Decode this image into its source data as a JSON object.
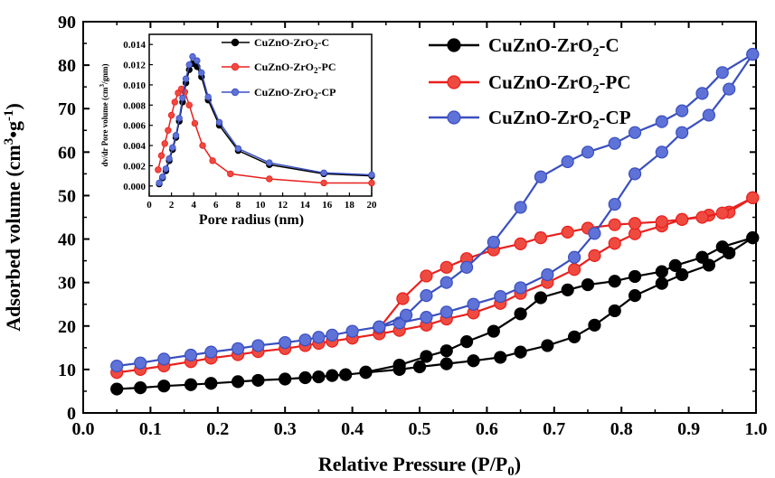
{
  "chart_data": [
    {
      "type": "line",
      "xlabel": "Relative Pressure (P/P",
      "xlabel_sub": "0",
      "xlabel_end": ")",
      "ylabel": "Adsorbed volume (cm",
      "ylabel_sup": "3",
      "ylabel_mid": "•g",
      "ylabel_sup2": "-1",
      "ylabel_end": ")",
      "xlim": [
        0.0,
        1.0
      ],
      "ylim": [
        0,
        90
      ],
      "xticks": [
        "0.0",
        "0.1",
        "0.2",
        "0.3",
        "0.4",
        "0.5",
        "0.6",
        "0.7",
        "0.8",
        "0.9",
        "1.0"
      ],
      "yticks": [
        "0",
        "10",
        "20",
        "30",
        "40",
        "50",
        "60",
        "70",
        "80",
        "90"
      ],
      "grid": false,
      "legend_position": "top-right",
      "series": [
        {
          "name_parts": [
            "CuZnO-ZrO",
            "2",
            "-C"
          ],
          "color": "#000000",
          "marker_fill": "#000000",
          "adsorption": [
            [
              0.05,
              5.5
            ],
            [
              0.085,
              5.8
            ],
            [
              0.12,
              6.2
            ],
            [
              0.16,
              6.5
            ],
            [
              0.19,
              6.8
            ],
            [
              0.23,
              7.2
            ],
            [
              0.26,
              7.5
            ],
            [
              0.3,
              7.8
            ],
            [
              0.33,
              8.1
            ],
            [
              0.35,
              8.3
            ],
            [
              0.37,
              8.6
            ],
            [
              0.39,
              8.8
            ],
            [
              0.42,
              9.3
            ],
            [
              0.47,
              10.0
            ],
            [
              0.5,
              10.6
            ],
            [
              0.54,
              11.3
            ],
            [
              0.58,
              12.0
            ],
            [
              0.62,
              12.8
            ],
            [
              0.65,
              14.0
            ],
            [
              0.69,
              15.5
            ],
            [
              0.73,
              17.5
            ],
            [
              0.76,
              20.2
            ],
            [
              0.79,
              23.5
            ],
            [
              0.82,
              27.0
            ],
            [
              0.86,
              29.8
            ],
            [
              0.89,
              31.8
            ],
            [
              0.93,
              34.0
            ],
            [
              0.96,
              36.8
            ],
            [
              0.995,
              40.3
            ]
          ],
          "desorption": [
            [
              0.995,
              40.3
            ],
            [
              0.95,
              38.2
            ],
            [
              0.92,
              35.8
            ],
            [
              0.88,
              33.9
            ],
            [
              0.86,
              32.5
            ],
            [
              0.82,
              31.4
            ],
            [
              0.79,
              30.3
            ],
            [
              0.75,
              29.5
            ],
            [
              0.72,
              28.3
            ],
            [
              0.68,
              26.5
            ],
            [
              0.65,
              22.8
            ],
            [
              0.61,
              18.8
            ],
            [
              0.57,
              16.4
            ],
            [
              0.54,
              14.3
            ],
            [
              0.51,
              13.0
            ],
            [
              0.47,
              11.0
            ],
            [
              0.42,
              9.4
            ]
          ]
        },
        {
          "name_parts": [
            "CuZnO-ZrO",
            "2",
            "-PC"
          ],
          "color": "#e8201e",
          "marker_fill": "#ef4a3f",
          "adsorption": [
            [
              0.05,
              9.3
            ],
            [
              0.085,
              10.0
            ],
            [
              0.12,
              10.8
            ],
            [
              0.16,
              11.8
            ],
            [
              0.19,
              12.6
            ],
            [
              0.23,
              13.4
            ],
            [
              0.26,
              14.1
            ],
            [
              0.3,
              14.8
            ],
            [
              0.33,
              15.5
            ],
            [
              0.35,
              16.0
            ],
            [
              0.37,
              16.5
            ],
            [
              0.4,
              17.2
            ],
            [
              0.44,
              18.2
            ],
            [
              0.47,
              19.0
            ],
            [
              0.51,
              20.2
            ],
            [
              0.54,
              21.6
            ],
            [
              0.58,
              23.0
            ],
            [
              0.62,
              25.2
            ],
            [
              0.65,
              27.5
            ],
            [
              0.69,
              30.0
            ],
            [
              0.73,
              33.0
            ],
            [
              0.76,
              36.2
            ],
            [
              0.79,
              39.0
            ],
            [
              0.82,
              41.2
            ],
            [
              0.86,
              43.0
            ],
            [
              0.89,
              44.5
            ],
            [
              0.93,
              45.5
            ],
            [
              0.96,
              46.2
            ],
            [
              0.995,
              49.5
            ]
          ],
          "desorption": [
            [
              0.995,
              49.5
            ],
            [
              0.95,
              46.0
            ],
            [
              0.92,
              45.0
            ],
            [
              0.89,
              44.5
            ],
            [
              0.86,
              44.0
            ],
            [
              0.82,
              43.6
            ],
            [
              0.79,
              43.3
            ],
            [
              0.75,
              42.5
            ],
            [
              0.72,
              41.6
            ],
            [
              0.68,
              40.3
            ],
            [
              0.65,
              38.9
            ],
            [
              0.61,
              37.5
            ],
            [
              0.57,
              35.5
            ],
            [
              0.54,
              33.5
            ],
            [
              0.51,
              31.5
            ],
            [
              0.475,
              26.3
            ],
            [
              0.44,
              19.5
            ]
          ]
        },
        {
          "name_parts": [
            "CuZnO-ZrO",
            "2",
            "-CP"
          ],
          "color": "#3a4fbf",
          "marker_fill": "#5e72d8",
          "adsorption": [
            [
              0.05,
              10.8
            ],
            [
              0.085,
              11.5
            ],
            [
              0.12,
              12.4
            ],
            [
              0.16,
              13.3
            ],
            [
              0.19,
              14.0
            ],
            [
              0.23,
              14.8
            ],
            [
              0.26,
              15.5
            ],
            [
              0.3,
              16.2
            ],
            [
              0.33,
              16.8
            ],
            [
              0.35,
              17.4
            ],
            [
              0.37,
              17.9
            ],
            [
              0.4,
              18.8
            ],
            [
              0.44,
              19.8
            ],
            [
              0.47,
              20.7
            ],
            [
              0.51,
              22.0
            ],
            [
              0.54,
              23.2
            ],
            [
              0.58,
              25.0
            ],
            [
              0.62,
              26.8
            ],
            [
              0.65,
              28.8
            ],
            [
              0.69,
              31.8
            ],
            [
              0.73,
              35.8
            ],
            [
              0.76,
              41.3
            ],
            [
              0.79,
              48.0
            ],
            [
              0.82,
              55.0
            ],
            [
              0.86,
              60.0
            ],
            [
              0.89,
              64.5
            ],
            [
              0.93,
              68.5
            ],
            [
              0.96,
              74.5
            ],
            [
              0.995,
              82.5
            ]
          ],
          "desorption": [
            [
              0.995,
              82.5
            ],
            [
              0.95,
              78.3
            ],
            [
              0.92,
              73.5
            ],
            [
              0.89,
              69.5
            ],
            [
              0.86,
              67.0
            ],
            [
              0.82,
              64.5
            ],
            [
              0.79,
              62.0
            ],
            [
              0.75,
              60.0
            ],
            [
              0.72,
              57.8
            ],
            [
              0.68,
              54.3
            ],
            [
              0.65,
              47.3
            ],
            [
              0.61,
              39.3
            ],
            [
              0.57,
              33.5
            ],
            [
              0.54,
              30.0
            ],
            [
              0.51,
              27.0
            ],
            [
              0.48,
              22.5
            ],
            [
              0.44,
              19.8
            ]
          ]
        }
      ]
    },
    {
      "type": "line",
      "inset": true,
      "xlabel": "Pore radius (nm)",
      "ylabel": "dv/dr Pore volume (cm",
      "ylabel_sup": "3",
      "ylabel_end": "/gnm)",
      "xlim": [
        0,
        20
      ],
      "ylim": [
        -0.001,
        0.015
      ],
      "xticks": [
        "0",
        "2",
        "4",
        "6",
        "8",
        "10",
        "12",
        "14",
        "16",
        "18",
        "20"
      ],
      "yticks": [
        "0.000",
        "0.002",
        "0.004",
        "0.006",
        "0.008",
        "0.010",
        "0.012",
        "0.014"
      ],
      "legend_position": "top-right",
      "series": [
        {
          "name_parts": [
            "CuZnO-ZrO",
            "2",
            "-C"
          ],
          "color": "#000000",
          "marker_fill": "#000000",
          "points": [
            [
              0.9,
              0.0002
            ],
            [
              1.2,
              0.0008
            ],
            [
              1.5,
              0.0015
            ],
            [
              1.8,
              0.0025
            ],
            [
              2.1,
              0.0036
            ],
            [
              2.4,
              0.0048
            ],
            [
              2.7,
              0.0064
            ],
            [
              3.0,
              0.0083
            ],
            [
              3.3,
              0.0102
            ],
            [
              3.6,
              0.0115
            ],
            [
              3.9,
              0.0121
            ],
            [
              4.3,
              0.0118
            ],
            [
              4.7,
              0.0108
            ],
            [
              5.3,
              0.0085
            ],
            [
              6.3,
              0.006
            ],
            [
              8.0,
              0.0035
            ],
            [
              10.8,
              0.0021
            ],
            [
              15.7,
              0.0012
            ],
            [
              20,
              0.001
            ]
          ]
        },
        {
          "name_parts": [
            "CuZnO-ZrO",
            "2",
            "-PC"
          ],
          "color": "#e8201e",
          "marker_fill": "#ef4a3f",
          "points": [
            [
              0.8,
              0.0016
            ],
            [
              1.1,
              0.003
            ],
            [
              1.4,
              0.0042
            ],
            [
              1.7,
              0.0055
            ],
            [
              2.0,
              0.007
            ],
            [
              2.3,
              0.0083
            ],
            [
              2.6,
              0.0092
            ],
            [
              2.9,
              0.0096
            ],
            [
              3.2,
              0.0093
            ],
            [
              3.6,
              0.008
            ],
            [
              4.1,
              0.0062
            ],
            [
              4.8,
              0.004
            ],
            [
              5.7,
              0.0025
            ],
            [
              7.3,
              0.0012
            ],
            [
              10.8,
              0.0007
            ],
            [
              15.7,
              0.0003
            ],
            [
              20,
              0.0003
            ]
          ]
        },
        {
          "name_parts": [
            "CuZnO-ZrO",
            "2",
            "-CP"
          ],
          "color": "#3a4fbf",
          "marker_fill": "#5e72d8",
          "points": [
            [
              0.9,
              0.0003
            ],
            [
              1.2,
              0.0009
            ],
            [
              1.5,
              0.0017
            ],
            [
              1.8,
              0.0027
            ],
            [
              2.1,
              0.0038
            ],
            [
              2.4,
              0.005
            ],
            [
              2.7,
              0.0067
            ],
            [
              3.0,
              0.0087
            ],
            [
              3.3,
              0.0106
            ],
            [
              3.6,
              0.012
            ],
            [
              3.9,
              0.0128
            ],
            [
              4.3,
              0.0124
            ],
            [
              4.7,
              0.0112
            ],
            [
              5.3,
              0.0088
            ],
            [
              6.3,
              0.0063
            ],
            [
              8.0,
              0.0037
            ],
            [
              10.8,
              0.0023
            ],
            [
              15.7,
              0.0013
            ],
            [
              20,
              0.0011
            ]
          ]
        }
      ]
    }
  ]
}
